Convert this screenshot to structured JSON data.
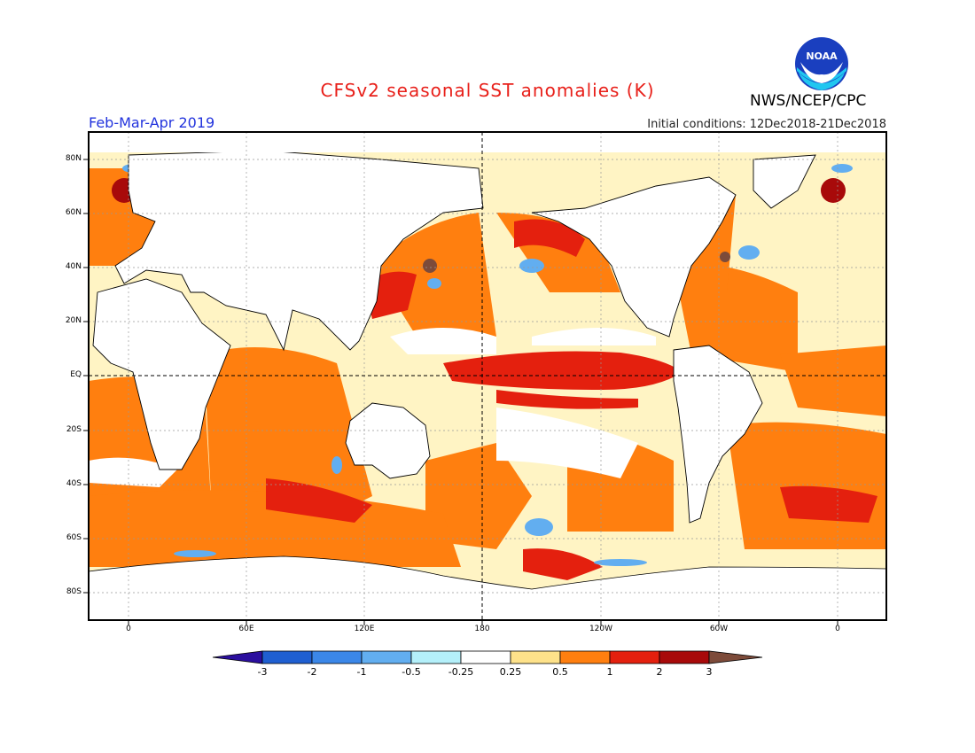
{
  "header": {
    "title": "CFSv2 seasonal SST anomalies (K)",
    "agency": "NWS/NCEP/CPC",
    "season": "Feb-Mar-Apr 2019",
    "initial_conditions": "Initial conditions: 12Dec2018-21Dec2018",
    "logo_text": "NOAA"
  },
  "map": {
    "lat_labels": [
      "80N",
      "60N",
      "40N",
      "20N",
      "EQ",
      "20S",
      "40S",
      "60S",
      "80S"
    ],
    "lon_labels": [
      "0",
      "60E",
      "120E",
      "180",
      "120W",
      "60W",
      "0"
    ]
  },
  "colorbar": {
    "labels": [
      "-3",
      "-2",
      "-1",
      "-0.5",
      "-0.25",
      "0.25",
      "0.5",
      "1",
      "2",
      "3"
    ],
    "colors": [
      "#2b0f9e",
      "#1f5fd1",
      "#3b87e8",
      "#62aef0",
      "#b4f0fa",
      "#ffffff",
      "#fee28a",
      "#ff7f0f",
      "#e4200e",
      "#a80a0a",
      "#7d4b3a"
    ]
  },
  "colors": {
    "title": "#e8201a",
    "season": "#2233dd",
    "land": "#ffffff",
    "warm_strong": "#c8140e",
    "warm": "#ff7f0f",
    "warm_light": "#fee28a",
    "cool": "#62aef0"
  }
}
